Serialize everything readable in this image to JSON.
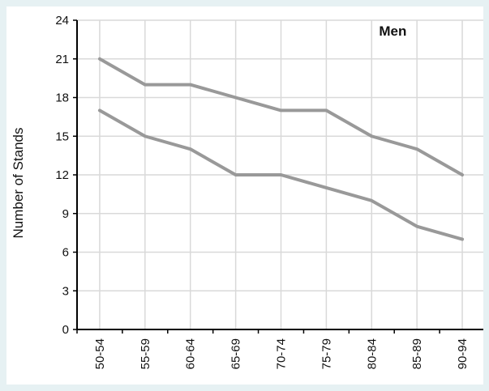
{
  "chart_data": {
    "type": "line",
    "title": "",
    "annotation": "Men",
    "xlabel": "",
    "ylabel": "Number of Stands",
    "categories": [
      "50-54",
      "55-59",
      "60-64",
      "65-69",
      "70-74",
      "75-79",
      "80-84",
      "85-89",
      "90-94"
    ],
    "ylim": [
      0,
      24
    ],
    "yticks": [
      0,
      3,
      6,
      9,
      12,
      15,
      18,
      21,
      24
    ],
    "grid": true,
    "series": [
      {
        "values": [
          21,
          19,
          19,
          18,
          17,
          17,
          15,
          14,
          12
        ],
        "color": "#999999"
      },
      {
        "values": [
          17,
          15,
          14,
          12,
          12,
          11,
          10,
          8,
          7
        ],
        "color": "#999999"
      }
    ]
  }
}
